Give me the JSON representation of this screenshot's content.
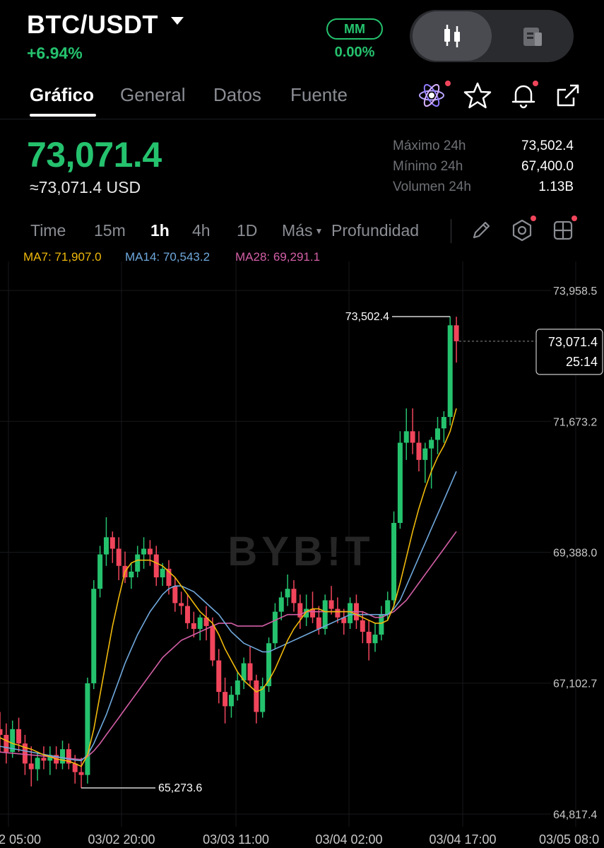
{
  "header": {
    "pair": "BTC/USDT",
    "change": "+6.94%",
    "mm_label": "MM",
    "mm_value": "0.00%",
    "toggle_icons": [
      "candlestick-icon",
      "orderbook-icon"
    ]
  },
  "tabs": [
    {
      "label": "Gráfico",
      "active": true
    },
    {
      "label": "General",
      "active": false
    },
    {
      "label": "Datos",
      "active": false
    },
    {
      "label": "Fuente",
      "active": false
    }
  ],
  "header_icons": [
    "ai-atom-icon",
    "star-icon",
    "bell-icon",
    "share-icon"
  ],
  "price": {
    "last": "73,071.4",
    "usd": "≈73,071.4 USD"
  },
  "stats": [
    {
      "label": "Máximo 24h",
      "value": "73,502.4"
    },
    {
      "label": "Mínimo 24h",
      "value": "67,400.0"
    },
    {
      "label": "Volumen 24h",
      "value": "1.13B"
    }
  ],
  "timeframes": [
    {
      "label": "Time",
      "active": false
    },
    {
      "label": "15m",
      "active": false
    },
    {
      "label": "1h",
      "active": true
    },
    {
      "label": "4h",
      "active": false
    },
    {
      "label": "1D",
      "active": false
    },
    {
      "label": "Más",
      "active": false
    },
    {
      "label": "Profundidad",
      "active": false
    }
  ],
  "tool_icons": [
    "pencil-icon",
    "indicator-settings-icon",
    "layout-grid-icon"
  ],
  "moving_averages": [
    {
      "label": "MA7:",
      "value": "71,907.0",
      "color": "#f0b90b"
    },
    {
      "label": "MA14:",
      "value": "70,543.2",
      "color": "#6fa8dc"
    },
    {
      "label": "MA28:",
      "value": "69,291.1",
      "color": "#d35fa6"
    }
  ],
  "colors": {
    "up": "#25c26e",
    "down": "#f0455b",
    "ma7": "#f0b90b",
    "ma14": "#6fa8dc",
    "ma28": "#d35fa6"
  },
  "chart_data": {
    "type": "candlestick",
    "y_ticks": [
      "73,958.5",
      "71,673.2",
      "69,388.0",
      "67,102.7",
      "64,817.4"
    ],
    "x_ticks": [
      "2 05:00",
      "03/02 20:00",
      "03/03 11:00",
      "03/04 02:00",
      "03/04 17:00",
      "03/05 08:0"
    ],
    "ylim": [
      64817.4,
      73958.5
    ],
    "high_marker": "73,502.4",
    "low_marker": "65,273.6",
    "current_price": "73,071.4",
    "countdown": "25:14",
    "watermark": "BYB!T",
    "candles": [
      [
        66300,
        66600,
        65900,
        66200
      ],
      [
        66200,
        66400,
        65700,
        65900
      ],
      [
        65900,
        66450,
        65800,
        66300
      ],
      [
        66300,
        66500,
        65900,
        66050
      ],
      [
        66050,
        66200,
        65500,
        65700
      ],
      [
        65700,
        66000,
        65300,
        65600
      ],
      [
        65600,
        65900,
        65400,
        65800
      ],
      [
        65800,
        66000,
        65600,
        65750
      ],
      [
        65750,
        66000,
        65500,
        65850
      ],
      [
        65850,
        66000,
        65600,
        65700
      ],
      [
        65700,
        66100,
        65600,
        65950
      ],
      [
        65950,
        66050,
        65600,
        65700
      ],
      [
        65700,
        65850,
        65350,
        65550
      ],
      [
        65550,
        65800,
        65273.6,
        65500
      ],
      [
        65500,
        67200,
        65350,
        67100
      ],
      [
        67100,
        68900,
        67000,
        68750
      ],
      [
        68750,
        69500,
        68600,
        69350
      ],
      [
        69350,
        70000,
        69150,
        69650
      ],
      [
        69650,
        69750,
        69200,
        69450
      ],
      [
        69450,
        69650,
        68900,
        69150
      ],
      [
        69150,
        69400,
        68850,
        68950
      ],
      [
        68950,
        69200,
        68750,
        69050
      ],
      [
        69050,
        69500,
        68950,
        69350
      ],
      [
        69350,
        69650,
        69100,
        69450
      ],
      [
        69450,
        69600,
        69150,
        69350
      ],
      [
        69350,
        69500,
        68800,
        68950
      ],
      [
        68950,
        69200,
        68800,
        69100
      ],
      [
        69100,
        69250,
        68650,
        68800
      ],
      [
        68800,
        68950,
        68350,
        68500
      ],
      [
        68500,
        68700,
        68300,
        68450
      ],
      [
        68450,
        68650,
        68050,
        68150
      ],
      [
        68150,
        68350,
        67900,
        68050
      ],
      [
        68050,
        68300,
        67850,
        68250
      ],
      [
        68250,
        68450,
        67850,
        68100
      ],
      [
        68100,
        68250,
        67400,
        67500
      ],
      [
        67500,
        67700,
        66750,
        66950
      ],
      [
        66950,
        67200,
        66400,
        66700
      ],
      [
        66700,
        67050,
        66500,
        66900
      ],
      [
        66900,
        67300,
        66800,
        67150
      ],
      [
        67150,
        67550,
        67000,
        67450
      ],
      [
        67450,
        67750,
        67050,
        67150
      ],
      [
        67150,
        67250,
        66400,
        66600
      ],
      [
        66600,
        67200,
        66500,
        67050
      ],
      [
        67050,
        67900,
        66950,
        67800
      ],
      [
        67800,
        68500,
        67700,
        68350
      ],
      [
        68350,
        68700,
        68200,
        68600
      ],
      [
        68600,
        69000,
        68450,
        68750
      ],
      [
        68750,
        68900,
        68350,
        68500
      ],
      [
        68500,
        68650,
        68050,
        68250
      ],
      [
        68250,
        68650,
        68100,
        68400
      ],
      [
        68400,
        68700,
        68150,
        68250
      ],
      [
        68250,
        68450,
        67950,
        68050
      ],
      [
        68050,
        68650,
        67950,
        68550
      ],
      [
        68550,
        68800,
        68300,
        68400
      ],
      [
        68400,
        68600,
        68150,
        68250
      ],
      [
        68250,
        68400,
        67950,
        68150
      ],
      [
        68150,
        68600,
        68050,
        68500
      ],
      [
        68500,
        68650,
        68050,
        68200
      ],
      [
        68200,
        68350,
        67800,
        68000
      ],
      [
        68000,
        68200,
        67500,
        67800
      ],
      [
        67800,
        68150,
        67650,
        67950
      ],
      [
        67950,
        68450,
        67850,
        68300
      ],
      [
        68300,
        68700,
        68200,
        68550
      ],
      [
        68550,
        70100,
        68450,
        69900
      ],
      [
        69900,
        71500,
        69800,
        71300
      ],
      [
        71300,
        71900,
        71000,
        71500
      ],
      [
        71500,
        71900,
        71100,
        71300
      ],
      [
        71300,
        71500,
        70800,
        71000
      ],
      [
        71000,
        71300,
        70600,
        71200
      ],
      [
        71200,
        71400,
        70500,
        71350
      ],
      [
        71350,
        71750,
        71100,
        71550
      ],
      [
        71550,
        71850,
        71300,
        71750
      ],
      [
        71750,
        73502.4,
        71600,
        73350
      ],
      [
        73350,
        73500,
        72700,
        73071.4
      ]
    ],
    "ma7": [
      66150,
      66100,
      66050,
      66020,
      65980,
      65950,
      65900,
      65850,
      65820,
      65780,
      65760,
      65740,
      65700,
      65650,
      65850,
      66300,
      66900,
      67500,
      68100,
      68600,
      69050,
      69200,
      69250,
      69250,
      69250,
      69200,
      69150,
      69050,
      68950,
      68800,
      68650,
      68500,
      68350,
      68250,
      68150,
      67950,
      67700,
      67500,
      67300,
      67150,
      67050,
      66950,
      67000,
      67150,
      67350,
      67600,
      67850,
      68050,
      68200,
      68350,
      68400,
      68400,
      68350,
      68350,
      68350,
      68350,
      68350,
      68300,
      68250,
      68200,
      68150,
      68150,
      68200,
      68450,
      68850,
      69300,
      69750,
      70150,
      70500,
      70800,
      71050,
      71250,
      71500,
      71900
    ],
    "ma14": [
      66000,
      65980,
      65960,
      65940,
      65920,
      65900,
      65880,
      65860,
      65840,
      65820,
      65800,
      65780,
      65760,
      65750,
      65850,
      66050,
      66300,
      66550,
      66850,
      67150,
      67450,
      67700,
      67950,
      68150,
      68350,
      68500,
      68650,
      68750,
      68800,
      68800,
      68750,
      68700,
      68600,
      68500,
      68400,
      68300,
      68150,
      68000,
      67900,
      67800,
      67750,
      67700,
      67650,
      67650,
      67700,
      67750,
      67800,
      67850,
      67900,
      67950,
      68000,
      68050,
      68100,
      68150,
      68200,
      68250,
      68300,
      68300,
      68300,
      68300,
      68300,
      68300,
      68300,
      68400,
      68550,
      68800,
      69050,
      69300,
      69550,
      69800,
      70050,
      70300,
      70550,
      70800
    ],
    "ma28": [
      65900,
      65890,
      65880,
      65870,
      65860,
      65850,
      65840,
      65830,
      65820,
      65810,
      65800,
      65790,
      65780,
      65770,
      65820,
      65920,
      66050,
      66200,
      66350,
      66500,
      66650,
      66800,
      66950,
      67100,
      67250,
      67400,
      67550,
      67650,
      67750,
      67850,
      67900,
      67950,
      68000,
      68050,
      68100,
      68150,
      68150,
      68150,
      68100,
      68100,
      68100,
      68100,
      68100,
      68150,
      68200,
      68250,
      68300,
      68300,
      68300,
      68350,
      68350,
      68350,
      68350,
      68350,
      68350,
      68350,
      68350,
      68350,
      68350,
      68300,
      68250,
      68250,
      68300,
      68350,
      68450,
      68550,
      68700,
      68850,
      69000,
      69150,
      69300,
      69450,
      69600,
      69750
    ]
  }
}
